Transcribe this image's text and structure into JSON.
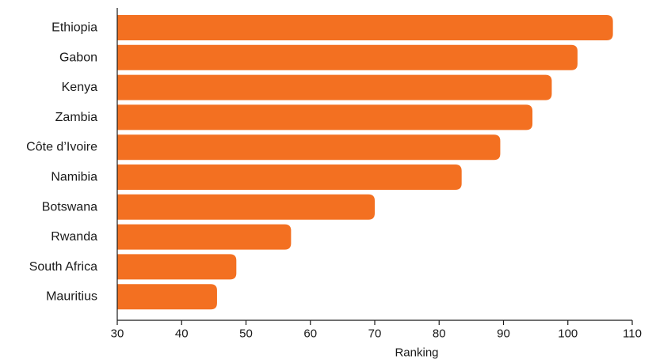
{
  "chart_data": {
    "type": "bar",
    "orientation": "horizontal",
    "title": "",
    "xlabel": "Ranking",
    "ylabel": "",
    "categories": [
      "Ethiopia",
      "Gabon",
      "Kenya",
      "Zambia",
      "Côte d’Ivoire",
      "Namibia",
      "Botswana",
      "Rwanda",
      "South Africa",
      "Mauritius"
    ],
    "values": [
      107,
      101.5,
      97.5,
      94.5,
      89.5,
      83.5,
      70,
      57,
      48.5,
      45.5
    ],
    "xlim": [
      30,
      110
    ],
    "xticks": [
      "30",
      "40",
      "50",
      "60",
      "70",
      "80",
      "90",
      "100",
      "110"
    ],
    "grid": false,
    "bar_color": "#f37021"
  }
}
